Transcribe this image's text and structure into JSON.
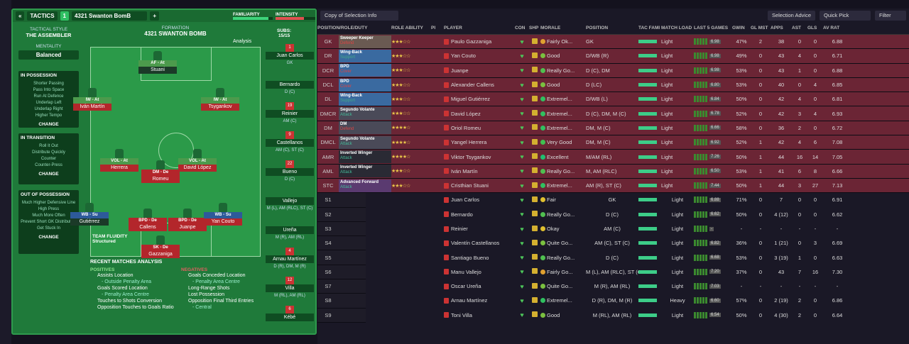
{
  "tactics": {
    "back": "«",
    "label": "TACTICS",
    "slot": "1",
    "name": "4321 Swanton BomB",
    "familiarity": "FAMILIARITY",
    "intensity": "INTENSITY"
  },
  "style": {
    "head": "TACTICAL STYLE",
    "name": "THE ASSEMBLER",
    "mentality_label": "MENTALITY",
    "mentality": "Balanced"
  },
  "ip": {
    "head": "IN POSSESSION",
    "items": [
      "Shorter Passing",
      "Pass Into Space",
      "Run At Defence",
      "Underlap Left",
      "Underlap Right",
      "Higher Tempo"
    ],
    "change": "CHANGE"
  },
  "it": {
    "head": "IN TRANSITION",
    "items": [
      "Roll It Out",
      "Distribute Quickly",
      "Counter",
      "Counter-Press"
    ],
    "change": "CHANGE"
  },
  "oop": {
    "head": "OUT OF POSSESSION",
    "items": [
      "Much Higher Defensive Line",
      "High Press",
      "Much More Often",
      "Prevent Short GK Distribution",
      "Get Stuck In"
    ],
    "change": "CHANGE"
  },
  "formation": {
    "head": "FORMATION",
    "name": "4321 SWANTON BOMB",
    "analysis": "Analysis",
    "subs_label": "SUBS:",
    "subs": "15/15"
  },
  "pitch": [
    {
      "role": "AF - At",
      "name": "Stuani",
      "c": "dk"
    },
    {
      "role": "IW - At",
      "name": "Iván Martín",
      "c": "red"
    },
    {
      "role": "IW - At",
      "name": "Tsygankov",
      "c": "red"
    },
    {
      "role": "VOL - At",
      "name": "Herrera",
      "c": "red"
    },
    {
      "role": "DM - De",
      "name": "Romeu",
      "c": "red"
    },
    {
      "role": "VOL - At",
      "name": "David López",
      "c": "red"
    },
    {
      "role": "WB - Su",
      "name": "Gutiérrez",
      "c": "dk"
    },
    {
      "role": "BPD - De",
      "name": "Callens",
      "c": "red"
    },
    {
      "role": "BPD - De",
      "name": "Juanpe",
      "c": "red"
    },
    {
      "role": "WB - Su",
      "name": "Yan Couto",
      "c": "red"
    },
    {
      "role": "SK - De",
      "name": "Gazzaniga",
      "c": "red"
    }
  ],
  "subs": [
    {
      "n": "Juan Carlos",
      "p": "GK",
      "num": "1"
    },
    {
      "n": "Bernardo",
      "p": "D (C)",
      "num": ""
    },
    {
      "n": "Reinier",
      "p": "AM (C)",
      "num": "19"
    },
    {
      "n": "Castellanos",
      "p": "AM (C), ST (C)",
      "num": "9"
    },
    {
      "n": "Bueno",
      "p": "D (C)",
      "num": "22"
    },
    {
      "n": "Vallejo",
      "p": "M (L), AM (RLC), ST (C)",
      "num": ""
    },
    {
      "n": "Ureña",
      "p": "M (R), AM (RL)",
      "num": ""
    },
    {
      "n": "Arnau Martínez",
      "p": "D (R), DM, M (R)",
      "num": "4"
    },
    {
      "n": "Villa",
      "p": "M (RL), AM (RL)",
      "num": "12"
    },
    {
      "n": "Kébé",
      "p": "",
      "num": "6"
    }
  ],
  "fluidity": {
    "label": "TEAM FLUIDITY",
    "value": "Structured"
  },
  "recent": {
    "head": "RECENT MATCHES ANALYSIS",
    "pos_head": "POSITIVES",
    "neg_head": "NEGATIVES",
    "positives": [
      "Assists Location",
      "- Outside Penalty Area",
      "Goals Scored Location",
      "- Penalty Area Centre",
      "Touches to Shots Conversion",
      "Opposition Touches to Goals Ratio"
    ],
    "negatives": [
      "Goals Conceded Location",
      "- Penalty Area Centre",
      "Long-Range Shots",
      "Lost Possession",
      "Opposition Final Third Entries",
      "- Central"
    ]
  },
  "top": {
    "view": "Copy of Selection Info",
    "advice": "Selection Advice",
    "quick": "Quick Pick",
    "filter": "Filter"
  },
  "cols": [
    "POSITION/ROLE/DUTY",
    "ROLE ABILITY",
    "PI",
    "PLAYER",
    "CON",
    "SHP",
    "MORALE",
    "POSITION",
    "TAC FAMI",
    "MATCH LOAD",
    "LAST 5 GAMES",
    "GWIN",
    "GL MST",
    "APPS",
    "AST",
    "GLS",
    "AV RAT"
  ],
  "rows": [
    {
      "pos": "GK",
      "role": "Sweeper Keeper",
      "duty": "Defend",
      "dc": "dd",
      "rc": "#6a5a52",
      "stars": "★★★☆☆",
      "name": "Paulo Gazzaniga",
      "mor": "Fairly Ok...",
      "mc": "#e0a030",
      "posn": "GK",
      "load": "Light",
      "l5": "6.98",
      "gwin": "47%",
      "glm": "2",
      "apps": "38",
      "ast": "0",
      "gls": "0",
      "av": "6.88"
    },
    {
      "pos": "DR",
      "role": "Wing-Back",
      "duty": "Support",
      "dc": "ds",
      "rc": "#3a6aa0",
      "stars": "★★★☆☆",
      "name": "Yan Couto",
      "mor": "Good",
      "mc": "#7ac040",
      "posn": "D/WB (R)",
      "load": "Light",
      "l5": "6.98",
      "gwin": "49%",
      "glm": "0",
      "apps": "43",
      "ast": "4",
      "gls": "0",
      "av": "6.71"
    },
    {
      "pos": "DCR",
      "role": "BPD",
      "duty": "Cover",
      "dc": "dd",
      "rc": "#3a6aa0",
      "stars": "★★★☆☆",
      "name": "Juanpe",
      "mor": "Really Go...",
      "mc": "#50c050",
      "posn": "D (C), DM",
      "load": "Light",
      "l5": "6.98",
      "gwin": "53%",
      "glm": "0",
      "apps": "43",
      "ast": "1",
      "gls": "0",
      "av": "6.88"
    },
    {
      "pos": "DCL",
      "role": "BPD",
      "duty": "Cover",
      "dc": "dd",
      "rc": "#3a6aa0",
      "stars": "★★★☆☆",
      "name": "Alexander Callens",
      "mor": "Good",
      "mc": "#7ac040",
      "posn": "D (LC)",
      "load": "Light",
      "l5": "6.80",
      "gwin": "53%",
      "glm": "0",
      "apps": "40",
      "ast": "0",
      "gls": "4",
      "av": "6.85"
    },
    {
      "pos": "DL",
      "role": "Wing-Back",
      "duty": "Support",
      "dc": "ds",
      "rc": "#3a6aa0",
      "stars": "★★★☆☆",
      "name": "Miguel Gutiérrez",
      "mor": "Extremel...",
      "mc": "#30c060",
      "posn": "D/WB (L)",
      "load": "Light",
      "l5": "6.84",
      "gwin": "50%",
      "glm": "0",
      "apps": "42",
      "ast": "4",
      "gls": "0",
      "av": "6.81"
    },
    {
      "pos": "DMCR",
      "role": "Segundo Volante",
      "duty": "Attack",
      "dc": "da",
      "rc": "#4a4a58",
      "stars": "★★★☆☆",
      "name": "David López",
      "mor": "Extremel...",
      "mc": "#30c060",
      "posn": "D (C), DM, M (C)",
      "load": "Light",
      "l5": "6.78",
      "gwin": "52%",
      "glm": "0",
      "apps": "42",
      "ast": "3",
      "gls": "4",
      "av": "6.93"
    },
    {
      "pos": "DM",
      "role": "DM",
      "duty": "Defend",
      "dc": "dd",
      "rc": "#4a4a58",
      "stars": "★★★★☆",
      "name": "Oriol Romeu",
      "mor": "Extremel...",
      "mc": "#30c060",
      "posn": "DM, M (C)",
      "load": "Light",
      "l5": "6.66",
      "gwin": "58%",
      "glm": "0",
      "apps": "36",
      "ast": "2",
      "gls": "0",
      "av": "6.72"
    },
    {
      "pos": "DMCL",
      "role": "Segundo Volante",
      "duty": "Attack",
      "dc": "da",
      "rc": "#4a4a58",
      "stars": "★★★★☆",
      "name": "Yangel Herrera",
      "mor": "Very Good",
      "mc": "#40c050",
      "posn": "DM, M (C)",
      "load": "Light",
      "l5": "6.92",
      "gwin": "52%",
      "glm": "1",
      "apps": "42",
      "ast": "4",
      "gls": "6",
      "av": "7.08"
    },
    {
      "pos": "AMR",
      "role": "Inverted Winger",
      "duty": "Attack",
      "dc": "da",
      "rc": "#2a2a34",
      "stars": "★★★★☆",
      "name": "Viktor Tsygankov",
      "mor": "Excellent",
      "mc": "#20c070",
      "posn": "M/AM (RL)",
      "load": "Light",
      "l5": "7.26",
      "gwin": "50%",
      "glm": "1",
      "apps": "44",
      "ast": "16",
      "gls": "14",
      "av": "7.05"
    },
    {
      "pos": "AML",
      "role": "Inverted Winger",
      "duty": "Attack",
      "dc": "da",
      "rc": "#2a2a34",
      "stars": "★★★☆☆",
      "name": "Iván Martín",
      "mor": "Really Go...",
      "mc": "#50c050",
      "posn": "M, AM (RLC)",
      "load": "Light",
      "l5": "6.50",
      "gwin": "53%",
      "glm": "1",
      "apps": "41",
      "ast": "6",
      "gls": "8",
      "av": "6.66"
    },
    {
      "pos": "STC",
      "role": "Advanced Forward",
      "duty": "Attack",
      "dc": "da",
      "rc": "#5a3a70",
      "stars": "★★★☆☆",
      "name": "Cristhian Stuani",
      "mor": "Extremel...",
      "mc": "#30c060",
      "posn": "AM (R), ST (C)",
      "load": "Light",
      "l5": "7.44",
      "gwin": "50%",
      "glm": "1",
      "apps": "44",
      "ast": "3",
      "gls": "27",
      "av": "7.13"
    },
    {
      "pos": "S1",
      "role": "",
      "duty": "",
      "dc": "",
      "rc": "",
      "stars": "",
      "name": "Juan Carlos",
      "mor": "Fair",
      "mc": "#e0c030",
      "posn": "GK",
      "load": "Light",
      "l5": "6.88",
      "gwin": "71%",
      "glm": "0",
      "apps": "7",
      "ast": "0",
      "gls": "0",
      "av": "6.91"
    },
    {
      "pos": "S2",
      "role": "",
      "duty": "",
      "dc": "",
      "rc": "",
      "stars": "",
      "name": "Bernardo",
      "mor": "Really Go...",
      "mc": "#50c050",
      "posn": "D (C)",
      "load": "Light",
      "l5": "6.62",
      "gwin": "50%",
      "glm": "0",
      "apps": "4 (12)",
      "ast": "0",
      "gls": "0",
      "av": "6.62"
    },
    {
      "pos": "S3",
      "role": "",
      "duty": "",
      "dc": "",
      "rc": "",
      "stars": "",
      "name": "Reinier",
      "mor": "Okay",
      "mc": "#e0c030",
      "posn": "AM (C)",
      "load": "Light",
      "l5": "-",
      "gwin": "-",
      "glm": "-",
      "apps": "-",
      "ast": "-",
      "gls": "-",
      "av": "-"
    },
    {
      "pos": "S4",
      "role": "",
      "duty": "",
      "dc": "",
      "rc": "",
      "stars": "",
      "name": "Valentín Castellanos",
      "mor": "Quite Go...",
      "mc": "#7ac040",
      "posn": "AM (C), ST (C)",
      "load": "Light",
      "l5": "6.82",
      "gwin": "36%",
      "glm": "0",
      "apps": "1 (21)",
      "ast": "0",
      "gls": "3",
      "av": "6.69"
    },
    {
      "pos": "S5",
      "role": "",
      "duty": "",
      "dc": "",
      "rc": "",
      "stars": "",
      "name": "Santiago Bueno",
      "mor": "Really Go...",
      "mc": "#50c050",
      "posn": "D (C)",
      "load": "Light",
      "l5": "6.68",
      "gwin": "53%",
      "glm": "0",
      "apps": "3 (19)",
      "ast": "1",
      "gls": "0",
      "av": "6.63"
    },
    {
      "pos": "S6",
      "role": "",
      "duty": "",
      "dc": "",
      "rc": "",
      "stars": "",
      "name": "Manu Vallejo",
      "mor": "Fairly Go...",
      "mc": "#e0a030",
      "posn": "M (L), AM (RLC), ST (C)",
      "load": "Light",
      "l5": "7.20",
      "gwin": "37%",
      "glm": "0",
      "apps": "43",
      "ast": "7",
      "gls": "16",
      "av": "7.30"
    },
    {
      "pos": "S7",
      "role": "",
      "duty": "",
      "dc": "",
      "rc": "",
      "stars": "",
      "name": "Oscar Ureña",
      "mor": "Quite Go...",
      "mc": "#7ac040",
      "posn": "M (R), AM (RL)",
      "load": "Light",
      "l5": "7.03",
      "gwin": "-",
      "glm": "-",
      "apps": "-",
      "ast": "-",
      "gls": "-",
      "av": "-"
    },
    {
      "pos": "S8",
      "role": "",
      "duty": "",
      "dc": "",
      "rc": "",
      "stars": "",
      "name": "Arnau Martínez",
      "mor": "Extremel...",
      "mc": "#30c060",
      "posn": "D (R), DM, M (R)",
      "load": "Heavy",
      "l5": "6.60",
      "gwin": "57%",
      "glm": "0",
      "apps": "2 (19)",
      "ast": "2",
      "gls": "0",
      "av": "6.86"
    },
    {
      "pos": "S9",
      "role": "",
      "duty": "",
      "dc": "",
      "rc": "",
      "stars": "",
      "name": "Toni Villa",
      "mor": "Good",
      "mc": "#7ac040",
      "posn": "M (RL), AM (RL)",
      "load": "Light",
      "l5": "6.54",
      "gwin": "50%",
      "glm": "0",
      "apps": "4 (30)",
      "ast": "2",
      "gls": "0",
      "av": "6.64"
    }
  ]
}
